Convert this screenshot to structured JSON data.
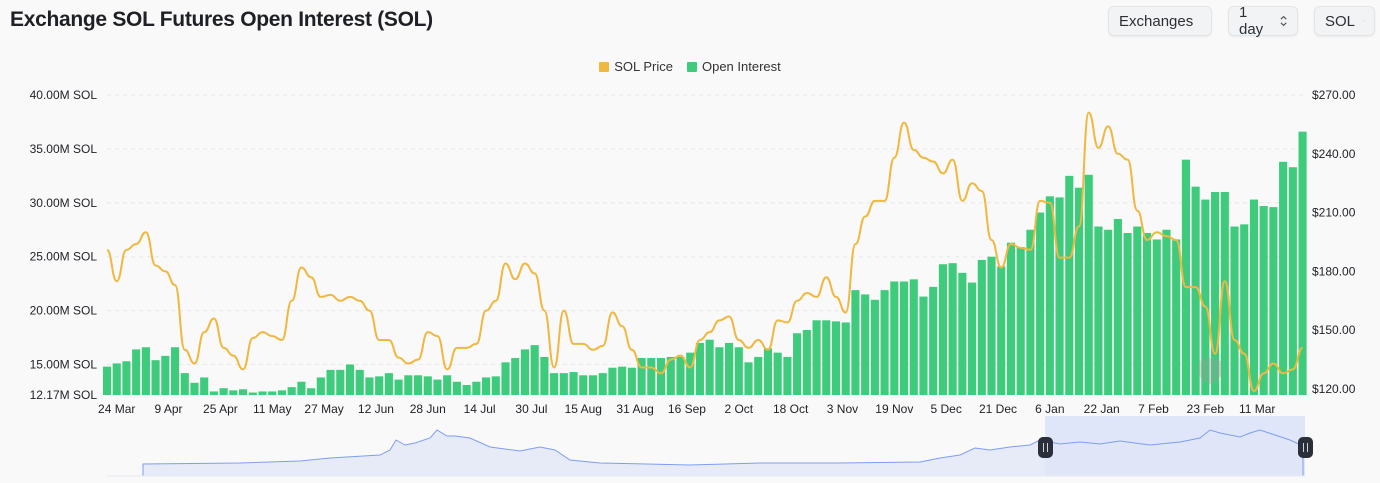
{
  "header": {
    "title": "Exchange SOL Futures Open Interest (SOL)"
  },
  "controls": {
    "exchange_select": "Exchanges",
    "interval_select": "1 day",
    "unit_select": "SOL"
  },
  "watermark": "coinglass",
  "colors": {
    "price": "#f0b840",
    "open_interest": "#3ecc7c",
    "navigator_line": "#7d9ef0",
    "navigator_selection": "#d6dff8"
  },
  "chart_data": {
    "type": "bar+line",
    "legend": {
      "position": "top-center",
      "items": [
        "SOL Price",
        "Open Interest"
      ]
    },
    "grid": true,
    "y_left": {
      "ticks": [
        "40.00M SOL",
        "35.00M SOL",
        "30.00M SOL",
        "25.00M SOL",
        "20.00M SOL",
        "15.00M SOL",
        "12.17M SOL"
      ],
      "tick_values": [
        40,
        35,
        30,
        25,
        20,
        15,
        12.17
      ],
      "range": [
        12.17,
        40
      ],
      "unit": "M SOL"
    },
    "y_right": {
      "ticks": [
        "$270.00",
        "$240.00",
        "$210.00",
        "$180.00",
        "$150.00",
        "$120.00"
      ],
      "tick_values": [
        270,
        240,
        210,
        180,
        150,
        120
      ],
      "range": [
        120,
        270
      ]
    },
    "x_ticks": [
      "24 Mar",
      "9 Apr",
      "25 Apr",
      "11 May",
      "27 May",
      "12 Jun",
      "28 Jun",
      "14 Jul",
      "30 Jul",
      "15 Aug",
      "31 Aug",
      "16 Sep",
      "2 Oct",
      "18 Oct",
      "3 Nov",
      "19 Nov",
      "5 Dec",
      "21 Dec",
      "6 Jan",
      "22 Jan",
      "7 Feb",
      "23 Feb",
      "11 Mar"
    ],
    "x": [
      "21 Mar",
      "24 Mar",
      "27 Mar",
      "30 Mar",
      "2 Apr",
      "5 Apr",
      "8 Apr",
      "11 Apr",
      "14 Apr",
      "17 Apr",
      "20 Apr",
      "23 Apr",
      "26 Apr",
      "29 Apr",
      "2 May",
      "5 May",
      "8 May",
      "11 May",
      "14 May",
      "17 May",
      "20 May",
      "23 May",
      "26 May",
      "29 May",
      "1 Jun",
      "4 Jun",
      "7 Jun",
      "10 Jun",
      "13 Jun",
      "16 Jun",
      "19 Jun",
      "22 Jun",
      "25 Jun",
      "28 Jun",
      "1 Jul",
      "4 Jul",
      "7 Jul",
      "10 Jul",
      "13 Jul",
      "16 Jul",
      "19 Jul",
      "22 Jul",
      "25 Jul",
      "28 Jul",
      "31 Jul",
      "3 Aug",
      "6 Aug",
      "9 Aug",
      "12 Aug",
      "15 Aug",
      "18 Aug",
      "21 Aug",
      "24 Aug",
      "27 Aug",
      "30 Aug",
      "2 Sep",
      "5 Sep",
      "8 Sep",
      "11 Sep",
      "14 Sep",
      "17 Sep",
      "20 Sep",
      "23 Sep",
      "26 Sep",
      "29 Sep",
      "2 Oct",
      "5 Oct",
      "8 Oct",
      "11 Oct",
      "14 Oct",
      "17 Oct",
      "20 Oct",
      "23 Oct",
      "26 Oct",
      "29 Oct",
      "1 Nov",
      "4 Nov",
      "7 Nov",
      "10 Nov",
      "13 Nov",
      "16 Nov",
      "19 Nov",
      "22 Nov",
      "25 Nov",
      "28 Nov",
      "1 Dec",
      "4 Dec",
      "7 Dec",
      "10 Dec",
      "13 Dec",
      "16 Dec",
      "19 Dec",
      "22 Dec",
      "25 Dec",
      "28 Dec",
      "31 Dec",
      "3 Jan",
      "6 Jan",
      "9 Jan",
      "12 Jan",
      "15 Jan",
      "18 Jan",
      "21 Jan",
      "24 Jan",
      "27 Jan",
      "30 Jan",
      "2 Feb",
      "5 Feb",
      "8 Feb",
      "11 Feb",
      "14 Feb",
      "17 Feb",
      "20 Feb",
      "23 Feb",
      "26 Feb",
      "1 Mar",
      "4 Mar",
      "7 Mar",
      "10 Mar",
      "13 Mar",
      "16 Mar",
      "19 Mar",
      "22 Mar",
      "25 Mar"
    ],
    "series": [
      {
        "name": "Open Interest",
        "type": "bar",
        "axis": "left",
        "unit": "M SOL",
        "values": [
          14.8,
          15.1,
          15.3,
          16.4,
          16.6,
          15.4,
          15.8,
          16.6,
          14.2,
          13.3,
          13.8,
          12.5,
          12.8,
          12.6,
          12.7,
          12.4,
          12.5,
          12.5,
          12.6,
          12.9,
          13.4,
          12.8,
          13.8,
          14.5,
          14.5,
          15.0,
          14.5,
          13.8,
          13.9,
          14.2,
          13.6,
          14.0,
          14.0,
          13.9,
          13.6,
          14.0,
          13.4,
          13.1,
          13.4,
          13.8,
          13.9,
          15.2,
          15.6,
          16.4,
          16.8,
          15.7,
          14.2,
          14.2,
          14.3,
          14.0,
          14.0,
          14.2,
          14.7,
          14.8,
          14.7,
          15.6,
          15.6,
          15.6,
          15.7,
          15.7,
          16.1,
          17.0,
          17.3,
          16.6,
          17.0,
          16.6,
          15.2,
          15.7,
          16.5,
          16.1,
          15.7,
          17.9,
          18.2,
          19.1,
          19.1,
          19.0,
          18.9,
          21.9,
          21.5,
          21.0,
          21.9,
          22.7,
          22.7,
          22.9,
          21.3,
          22.2,
          24.3,
          24.4,
          23.5,
          22.6,
          24.7,
          25.0,
          24.1,
          26.3,
          25.9,
          27.5,
          29.1,
          30.6,
          30.5,
          32.5,
          31.4,
          32.6,
          27.8,
          27.5,
          28.5,
          27.2,
          27.8,
          27.2,
          26.6,
          27.5,
          26.6,
          34.0,
          31.5,
          30.3,
          31.0,
          31.0,
          27.8,
          28.0,
          30.3,
          29.7,
          29.6,
          33.8,
          33.3,
          36.6
        ]
      },
      {
        "name": "SOL Price",
        "type": "line",
        "axis": "right",
        "unit": "$",
        "values": [
          191,
          175,
          191,
          194,
          200,
          183,
          180,
          173,
          140,
          133,
          149,
          156,
          141,
          137,
          130,
          146,
          149,
          147,
          145,
          165,
          182,
          177,
          167,
          168,
          165,
          167,
          165,
          160,
          145,
          145,
          136,
          133,
          135,
          149,
          147,
          130,
          141,
          141,
          143,
          160,
          165,
          184,
          176,
          184,
          179,
          160,
          131,
          160,
          143,
          143,
          140,
          142,
          159,
          152,
          140,
          131,
          131,
          128,
          135,
          137,
          131,
          145,
          149,
          155,
          157,
          145,
          141,
          145,
          140,
          155,
          154,
          165,
          169,
          167,
          177,
          167,
          159,
          194,
          208,
          216,
          216,
          238,
          256,
          242,
          238,
          236,
          230,
          237,
          216,
          225,
          221,
          196,
          182,
          194,
          192,
          191,
          216,
          215,
          187,
          187,
          203,
          261,
          243,
          254,
          240,
          237,
          211,
          196,
          200,
          198,
          196,
          172,
          172,
          162,
          138,
          175,
          145,
          138,
          119,
          128,
          133,
          128,
          130,
          141
        ]
      }
    ]
  }
}
